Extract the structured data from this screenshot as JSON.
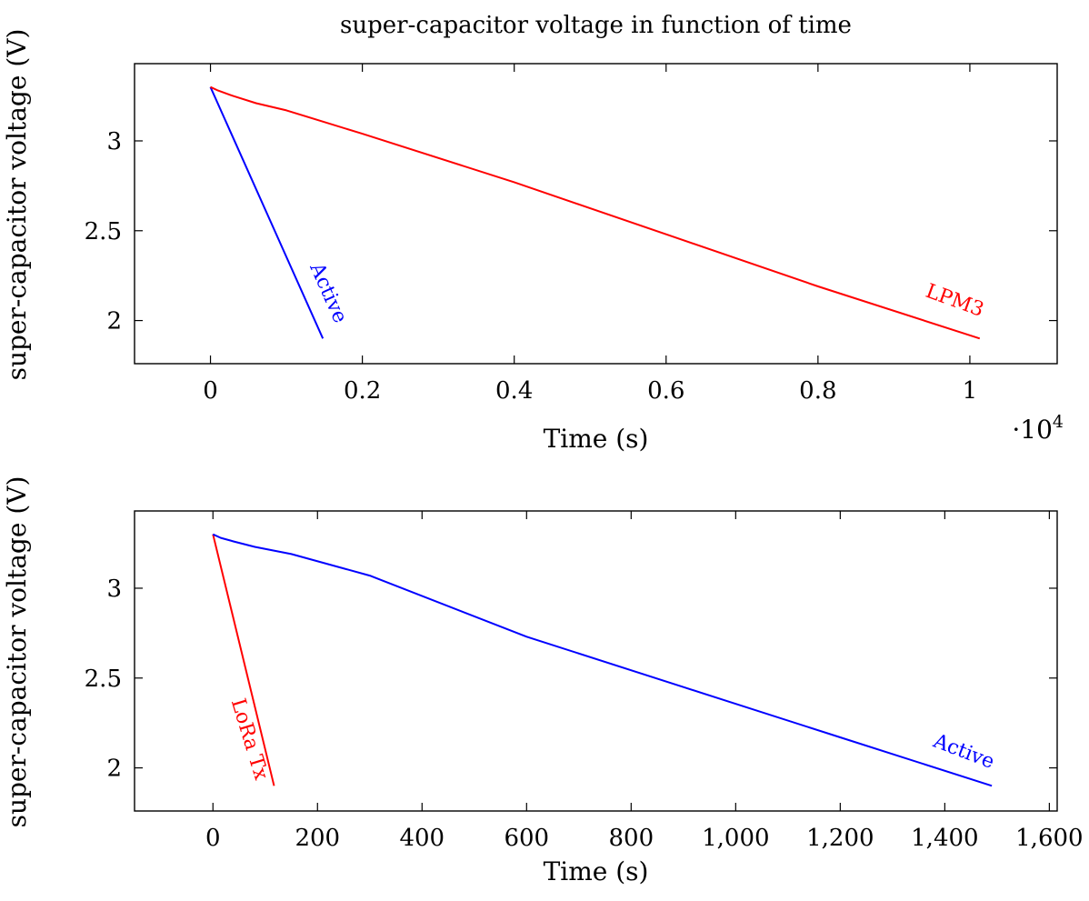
{
  "chart_data": [
    {
      "type": "line",
      "title": "super-capacitor voltage in function of time",
      "xlabel": "Time (s)",
      "ylabel": "super-capacitor voltage (V)",
      "xlim": [
        -1000,
        11150
      ],
      "ylim": [
        1.76,
        3.43
      ],
      "x_ticks": [
        0,
        2000,
        4000,
        6000,
        8000,
        10000
      ],
      "x_tick_labels": [
        "0",
        "0.2",
        "0.4",
        "0.6",
        "0.8",
        "1"
      ],
      "x_scale_label": "·10",
      "x_scale_exponent": "4",
      "y_ticks": [
        2,
        2.5,
        3
      ],
      "y_tick_labels": [
        "2",
        "2.5",
        "3"
      ],
      "grid": false,
      "series": [
        {
          "name": "Active",
          "color": "#0000ff",
          "x": [
            0,
            1480
          ],
          "y": [
            3.3,
            1.9
          ]
        },
        {
          "name": "LPM3",
          "color": "#ff0000",
          "x": [
            0,
            100,
            300,
            600,
            1000,
            2000,
            4000,
            6000,
            8000,
            10130
          ],
          "y": [
            3.3,
            3.28,
            3.25,
            3.21,
            3.17,
            3.04,
            2.77,
            2.48,
            2.19,
            1.9
          ]
        }
      ]
    },
    {
      "type": "line",
      "title": "",
      "xlabel": "Time (s)",
      "ylabel": "super-capacitor voltage (V)",
      "xlim": [
        -150,
        1615
      ],
      "ylim": [
        1.76,
        3.43
      ],
      "x_ticks": [
        0,
        200,
        400,
        600,
        800,
        1000,
        1200,
        1400,
        1600
      ],
      "x_tick_labels": [
        "0",
        "200",
        "400",
        "600",
        "800",
        "1,000",
        "1,200",
        "1,400",
        "1,600"
      ],
      "y_ticks": [
        2,
        2.5,
        3
      ],
      "y_tick_labels": [
        "2",
        "2.5",
        "3"
      ],
      "grid": false,
      "series": [
        {
          "name": "LoRa Tx",
          "color": "#ff0000",
          "x": [
            0,
            117
          ],
          "y": [
            3.3,
            1.9
          ]
        },
        {
          "name": "Active",
          "color": "#0000ff",
          "x": [
            0,
            15,
            40,
            80,
            150,
            300,
            600,
            900,
            1200,
            1490
          ],
          "y": [
            3.3,
            3.28,
            3.26,
            3.23,
            3.19,
            3.07,
            2.73,
            2.45,
            2.17,
            1.9
          ]
        }
      ]
    }
  ]
}
